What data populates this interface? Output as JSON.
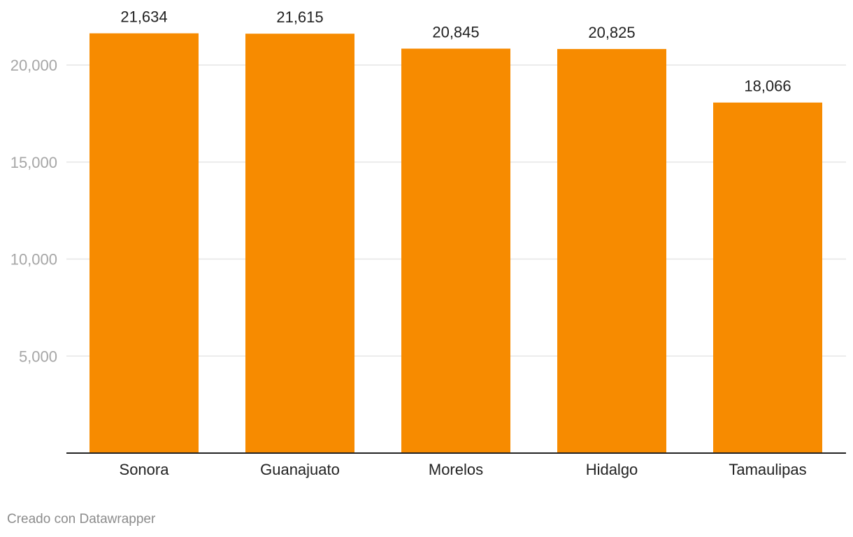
{
  "chart_data": {
    "type": "bar",
    "title": "",
    "xlabel": "",
    "ylabel": "",
    "categories": [
      "Sonora",
      "Guanajuato",
      "Morelos",
      "Hidalgo",
      "Tamaulipas"
    ],
    "values": [
      21634,
      21615,
      20845,
      20825,
      18066
    ],
    "value_labels": [
      "21,634",
      "21,615",
      "20,845",
      "20,825",
      "18,066"
    ],
    "y_ticks": [
      5000,
      10000,
      15000,
      20000
    ],
    "y_tick_labels": [
      "5,000",
      "10,000",
      "15,000",
      "20,000"
    ],
    "ylim": [
      0,
      23000
    ],
    "grid": true,
    "legend": "none",
    "colors": {
      "bar": "#f78b00",
      "grid": "#e6e6e6",
      "baseline": "#222222"
    }
  },
  "footer": {
    "credit": "Creado con Datawrapper"
  }
}
